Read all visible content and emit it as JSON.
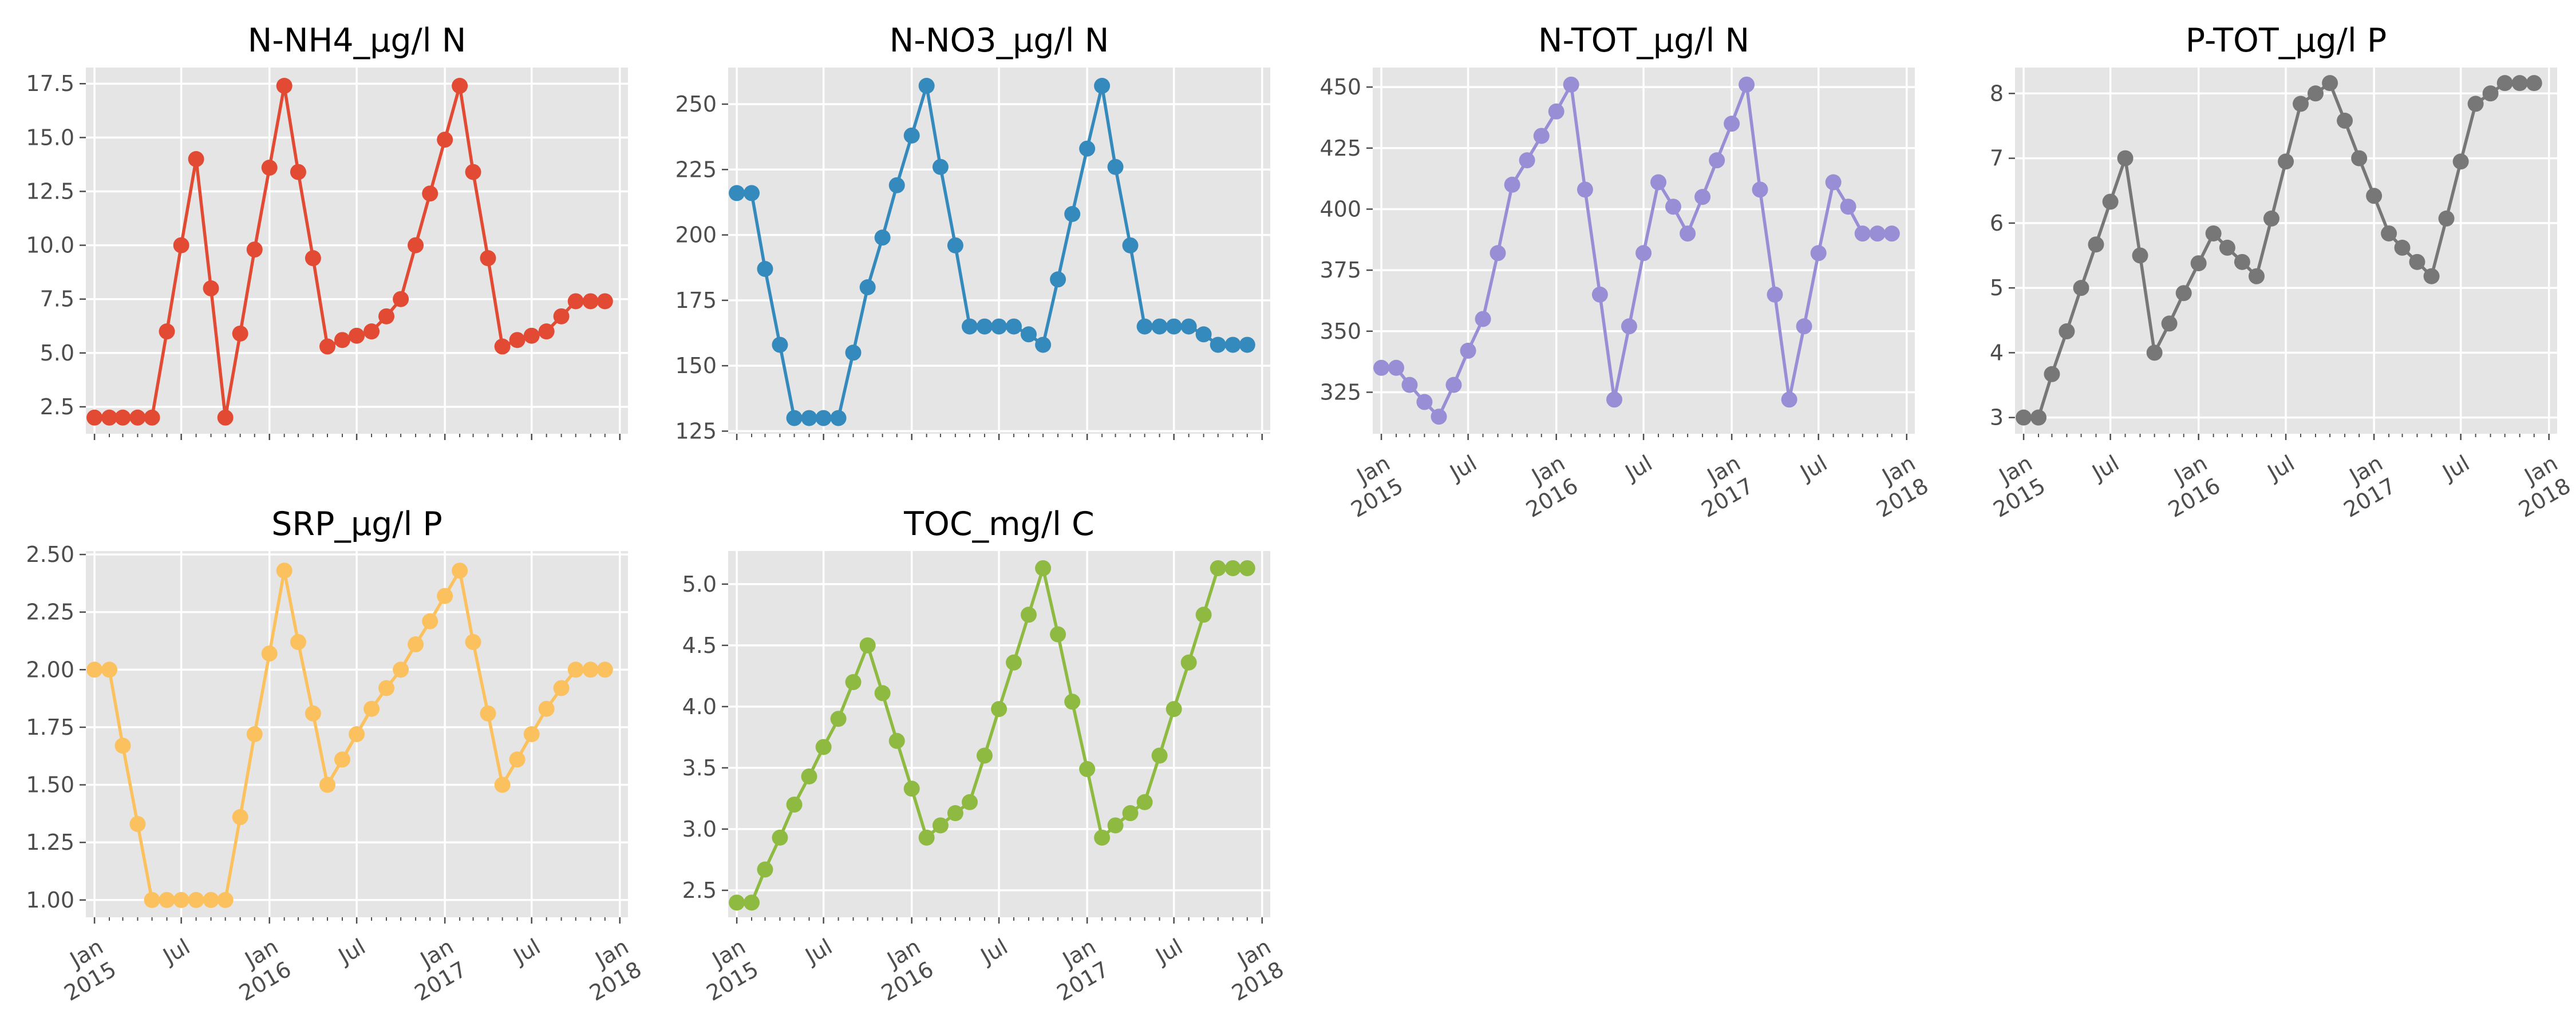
{
  "x_dates": [
    "2015-01",
    "2015-02",
    "2015-03",
    "2015-04",
    "2015-05",
    "2015-06",
    "2015-07",
    "2015-08",
    "2015-09",
    "2015-10",
    "2015-11",
    "2015-12",
    "2016-01",
    "2016-02",
    "2016-03",
    "2016-04",
    "2016-05",
    "2016-06",
    "2016-07",
    "2016-08",
    "2016-09",
    "2016-10",
    "2016-11",
    "2016-12",
    "2017-01",
    "2017-02",
    "2017-03",
    "2017-04",
    "2017-05",
    "2017-06",
    "2017-07",
    "2017-08",
    "2017-09",
    "2017-10",
    "2017-11",
    "2017-12"
  ],
  "x_axis": {
    "range": [
      "2014-12-14",
      "2018-01-18"
    ],
    "ticks": [
      {
        "date": "2015-01",
        "line1": "Jan",
        "line2": "2015"
      },
      {
        "date": "2015-07",
        "line1": "Jul",
        "line2": ""
      },
      {
        "date": "2016-01",
        "line1": "Jan",
        "line2": "2016"
      },
      {
        "date": "2016-07",
        "line1": "Jul",
        "line2": ""
      },
      {
        "date": "2017-01",
        "line1": "Jan",
        "line2": "2017"
      },
      {
        "date": "2017-07",
        "line1": "Jul",
        "line2": ""
      },
      {
        "date": "2018-01",
        "line1": "Jan",
        "line2": "2018"
      }
    ]
  },
  "chart_data": [
    {
      "type": "line",
      "title": "N-NH4_µg/l N",
      "color": "#E24A33",
      "ylim": [
        1.25,
        18.25
      ],
      "yticks": [
        2.5,
        5.0,
        7.5,
        10.0,
        12.5,
        15.0,
        17.5
      ],
      "ytick_labels": [
        "2.5",
        "5.0",
        "7.5",
        "10.0",
        "12.5",
        "15.0",
        "17.5"
      ],
      "show_xlabels": false,
      "values": [
        2.0,
        2.0,
        2.0,
        2.0,
        2.0,
        6.0,
        10.0,
        14.0,
        8.0,
        2.0,
        5.9,
        9.8,
        13.6,
        17.4,
        13.4,
        9.4,
        5.3,
        5.6,
        5.8,
        6.0,
        6.7,
        7.5,
        10.0,
        12.4,
        14.9,
        17.4,
        13.4,
        9.4,
        5.3,
        5.6,
        5.8,
        6.0,
        6.7,
        7.4,
        7.4,
        7.4
      ]
    },
    {
      "type": "line",
      "title": "N-NO3_µg/l N",
      "color": "#348ABD",
      "ylim": [
        124,
        264
      ],
      "yticks": [
        125,
        150,
        175,
        200,
        225,
        250
      ],
      "ytick_labels": [
        "125",
        "150",
        "175",
        "200",
        "225",
        "250"
      ],
      "show_xlabels": false,
      "values": [
        216,
        216,
        187,
        158,
        130,
        130,
        130,
        130,
        155,
        180,
        199,
        219,
        238,
        257,
        226,
        196,
        165,
        165,
        165,
        165,
        162,
        158,
        183,
        208,
        233,
        257,
        226,
        196,
        165,
        165,
        165,
        165,
        162,
        158,
        158,
        158
      ]
    },
    {
      "type": "line",
      "title": "N-TOT_µg/l N",
      "color": "#988ED5",
      "ylim": [
        308,
        458
      ],
      "yticks": [
        325,
        350,
        375,
        400,
        425,
        450
      ],
      "ytick_labels": [
        "325",
        "350",
        "375",
        "400",
        "425",
        "450"
      ],
      "show_xlabels": true,
      "values": [
        335,
        335,
        328,
        321,
        315,
        328,
        342,
        355,
        382,
        410,
        420,
        430,
        440,
        451,
        408,
        365,
        322,
        352,
        382,
        411,
        401,
        390,
        405,
        420,
        435,
        451,
        408,
        365,
        322,
        352,
        382,
        411,
        401,
        390,
        390,
        390
      ]
    },
    {
      "type": "line",
      "title": "P-TOT_µg/l P",
      "color": "#777777",
      "ylim": [
        2.75,
        8.4
      ],
      "yticks": [
        3,
        4,
        5,
        6,
        7,
        8
      ],
      "ytick_labels": [
        "3",
        "4",
        "5",
        "6",
        "7",
        "8"
      ],
      "show_xlabels": true,
      "values": [
        3.0,
        3.0,
        3.67,
        4.33,
        5.0,
        5.67,
        6.33,
        7.0,
        5.5,
        4.0,
        4.45,
        4.92,
        5.38,
        5.84,
        5.62,
        5.4,
        5.18,
        6.07,
        6.95,
        7.84,
        8.0,
        8.16,
        7.58,
        7.0,
        6.42,
        5.84,
        5.62,
        5.4,
        5.18,
        6.07,
        6.95,
        7.84,
        8.0,
        8.16,
        8.16,
        8.16
      ]
    },
    {
      "type": "line",
      "title": "SRP_µg/l P",
      "color": "#FBC15E",
      "ylim": [
        0.925,
        2.515
      ],
      "yticks": [
        1.0,
        1.25,
        1.5,
        1.75,
        2.0,
        2.25,
        2.5
      ],
      "ytick_labels": [
        "1.00",
        "1.25",
        "1.50",
        "1.75",
        "2.00",
        "2.25",
        "2.50"
      ],
      "show_xlabels": true,
      "values": [
        2.0,
        2.0,
        1.67,
        1.33,
        1.0,
        1.0,
        1.0,
        1.0,
        1.0,
        1.0,
        1.36,
        1.72,
        2.07,
        2.43,
        2.12,
        1.81,
        1.5,
        1.61,
        1.72,
        1.83,
        1.92,
        2.0,
        2.11,
        2.21,
        2.32,
        2.43,
        2.12,
        1.81,
        1.5,
        1.61,
        1.72,
        1.83,
        1.92,
        2.0,
        2.0,
        2.0
      ]
    },
    {
      "type": "line",
      "title": "TOC_mg/l C",
      "color": "#8EBA42",
      "ylim": [
        2.28,
        5.27
      ],
      "yticks": [
        2.5,
        3.0,
        3.5,
        4.0,
        4.5,
        5.0
      ],
      "ytick_labels": [
        "2.5",
        "3.0",
        "3.5",
        "4.0",
        "4.5",
        "5.0"
      ],
      "show_xlabels": true,
      "values": [
        2.4,
        2.4,
        2.67,
        2.93,
        3.2,
        3.43,
        3.67,
        3.9,
        4.2,
        4.5,
        4.11,
        3.72,
        3.33,
        2.93,
        3.03,
        3.13,
        3.22,
        3.6,
        3.98,
        4.36,
        4.75,
        5.13,
        4.59,
        4.04,
        3.49,
        2.93,
        3.03,
        3.13,
        3.22,
        3.6,
        3.98,
        4.36,
        4.75,
        5.13,
        5.13,
        5.13
      ]
    }
  ]
}
